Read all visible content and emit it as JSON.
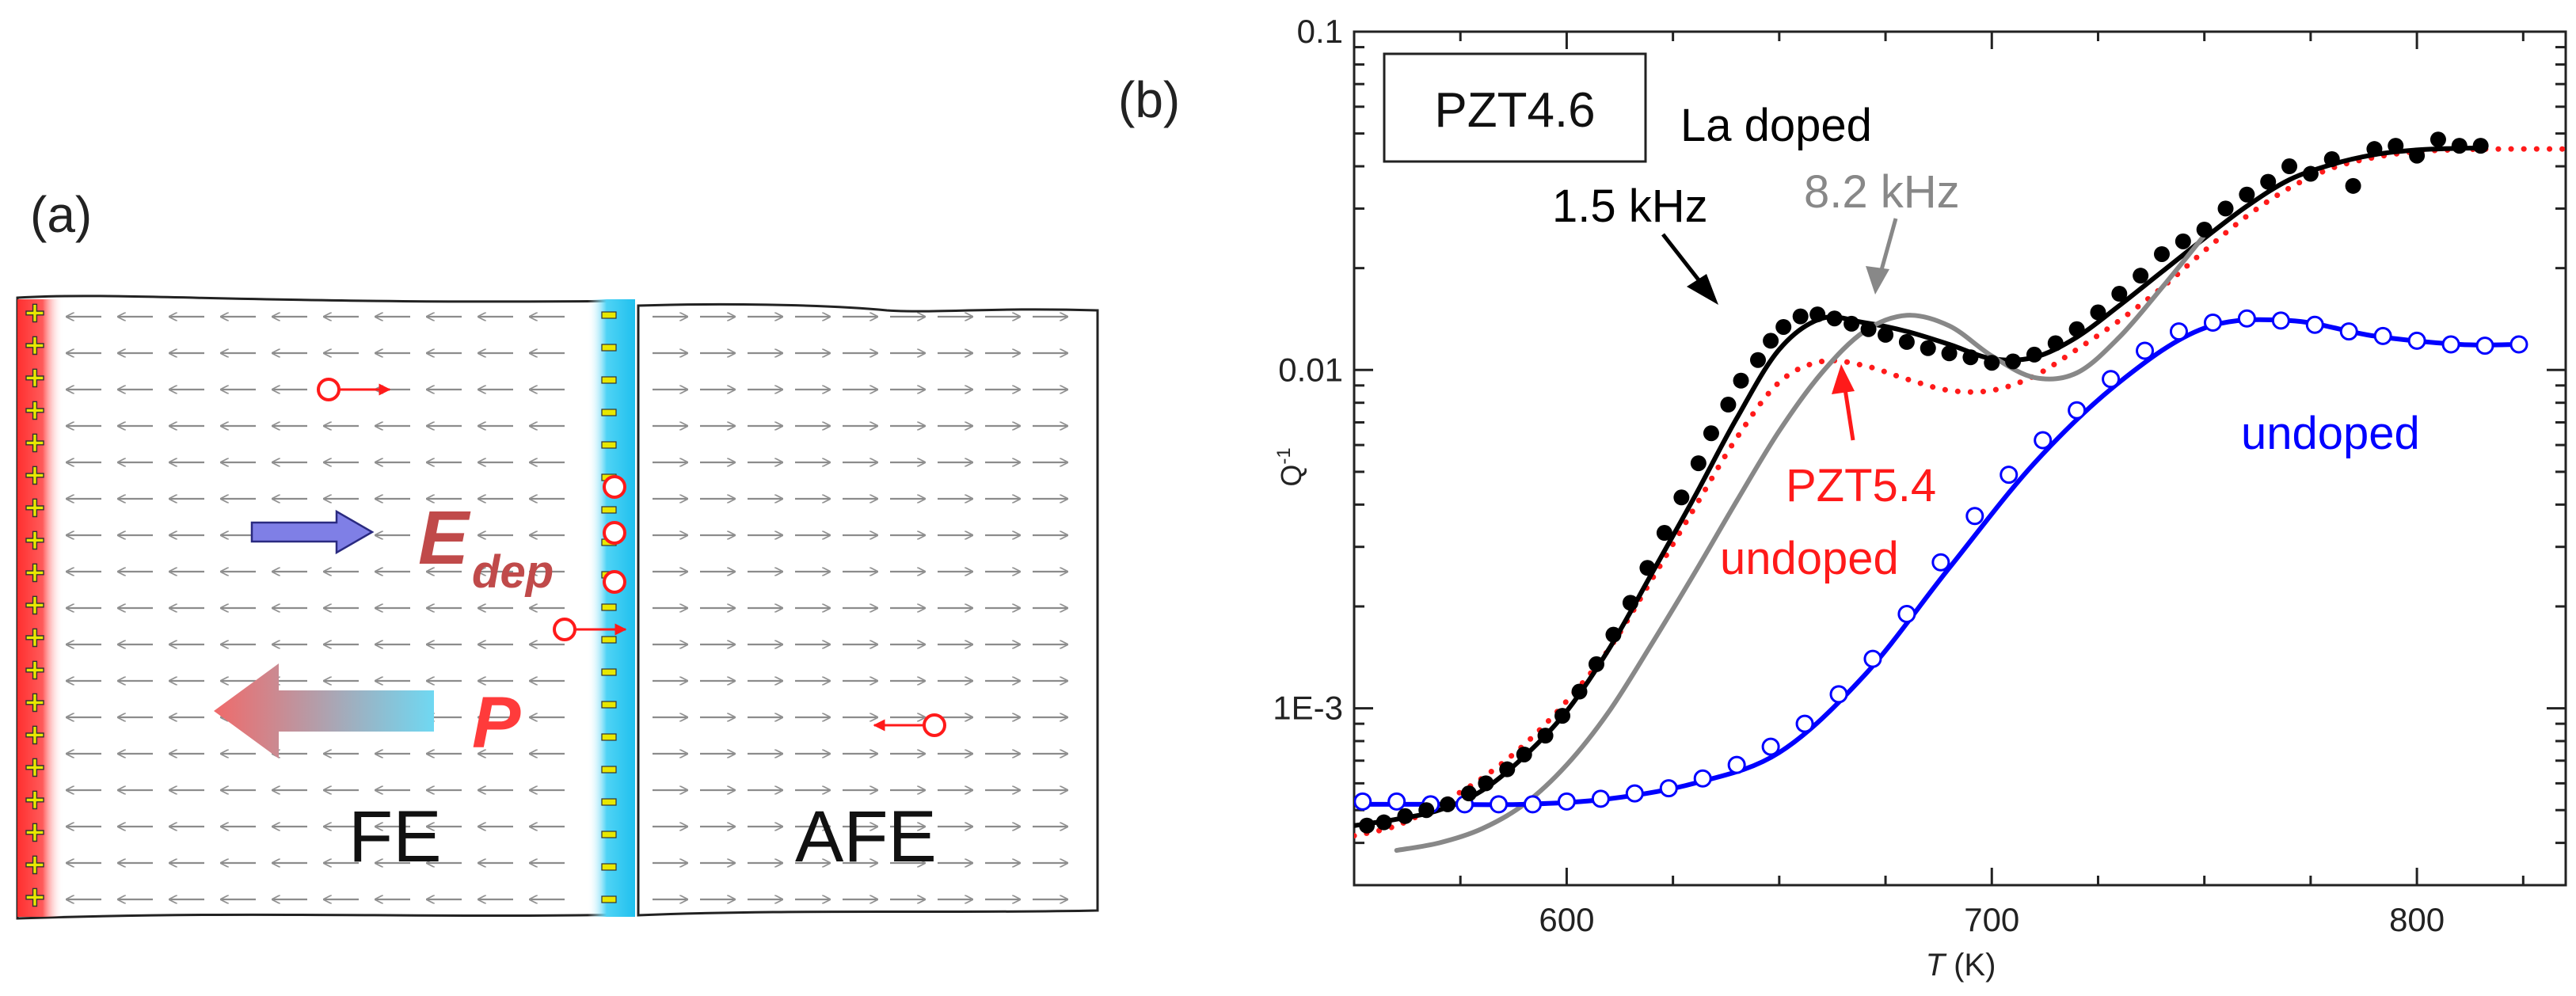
{
  "panel_a": {
    "label": "(a)",
    "field_label_main": "E",
    "field_label_sub": "dep",
    "polarization_label": "P",
    "fe_label": "FE",
    "afe_label": "AFE",
    "plus_symbol": "+",
    "colors": {
      "positive_electrode": "#ff3b3b",
      "negative_electrode": "#27c6ef",
      "charge_sign": "#e8e800",
      "arrow_grid": "#8c8c8c",
      "defect": "#ff1a1a",
      "field_arrow": "#7f7fe6",
      "label": "#c04a4a"
    }
  },
  "chart_data": {
    "type": "line",
    "panel_label": "(b)",
    "title_box": "PZT4.6",
    "xlabel_italic": "T",
    "xlabel_unit": " (K)",
    "ylabel_main": "Q",
    "ylabel_sup": "-1",
    "xlim": [
      550,
      835
    ],
    "ylim": [
      0.0003,
      0.1
    ],
    "yscale": "log",
    "xticks": [
      600,
      700,
      800
    ],
    "yticks": [
      {
        "value": 0.1,
        "label": "0.1"
      },
      {
        "value": 0.01,
        "label": "0.01"
      },
      {
        "value": 0.001,
        "label": "1E-3"
      }
    ],
    "annotations": [
      {
        "text": "La doped",
        "color": "#000000"
      },
      {
        "text": "1.5 kHz",
        "color": "#000000"
      },
      {
        "text": "8.2 kHz",
        "color": "#888888"
      },
      {
        "text": "PZT5.4",
        "color": "#ff0000"
      },
      {
        "text": "undoped",
        "color": "#ff0000"
      },
      {
        "text": "undoped",
        "color": "#0000ff"
      }
    ],
    "series": [
      {
        "name": "La doped 1.5 kHz data",
        "style": "filled-markers",
        "color": "#000000",
        "x": [
          553,
          557,
          562,
          567,
          572,
          577,
          581,
          586,
          590,
          595,
          599,
          603,
          607,
          611,
          615,
          619,
          623,
          627,
          631,
          634,
          638,
          641,
          645,
          648,
          651,
          655,
          659,
          663,
          667,
          671,
          675,
          680,
          685,
          690,
          695,
          700,
          705,
          710,
          715,
          720,
          725,
          730,
          735,
          740,
          745,
          750,
          755,
          760,
          765,
          770,
          775,
          780,
          785,
          790,
          795,
          800,
          805,
          810,
          815
        ],
        "y": [
          0.00045,
          0.00046,
          0.00048,
          0.0005,
          0.00052,
          0.00056,
          0.0006,
          0.00066,
          0.00073,
          0.00083,
          0.00095,
          0.00112,
          0.00135,
          0.00165,
          0.00205,
          0.0026,
          0.0033,
          0.0042,
          0.0053,
          0.0065,
          0.0079,
          0.0093,
          0.0107,
          0.0122,
          0.0134,
          0.0144,
          0.0146,
          0.0142,
          0.0137,
          0.0132,
          0.0127,
          0.0121,
          0.0116,
          0.0112,
          0.0109,
          0.0105,
          0.0106,
          0.0111,
          0.012,
          0.0132,
          0.0148,
          0.0168,
          0.019,
          0.022,
          0.024,
          0.026,
          0.03,
          0.033,
          0.036,
          0.04,
          0.038,
          0.042,
          0.035,
          0.045,
          0.046,
          0.043,
          0.048,
          0.046,
          0.046
        ]
      },
      {
        "name": "La doped 1.5 kHz fit",
        "style": "line",
        "color": "#000000",
        "x": [
          550,
          560,
          570,
          580,
          590,
          600,
          610,
          620,
          630,
          640,
          650,
          660,
          670,
          680,
          690,
          700,
          710,
          720,
          730,
          740,
          750,
          760,
          770,
          780,
          790,
          800,
          810,
          815
        ],
        "y": [
          0.00045,
          0.00047,
          0.0005,
          0.00057,
          0.00072,
          0.00098,
          0.0015,
          0.0025,
          0.0042,
          0.0072,
          0.0115,
          0.0142,
          0.0138,
          0.013,
          0.0119,
          0.0108,
          0.0109,
          0.0125,
          0.0155,
          0.0195,
          0.0245,
          0.0305,
          0.0365,
          0.0405,
          0.0433,
          0.0447,
          0.0452,
          0.0453
        ]
      },
      {
        "name": "8.2 kHz",
        "style": "line",
        "color": "#888888",
        "x": [
          560,
          570,
          580,
          590,
          600,
          610,
          620,
          630,
          640,
          650,
          660,
          670,
          680,
          690,
          700,
          710,
          720,
          730,
          740,
          750
        ],
        "y": [
          0.00038,
          0.0004,
          0.00044,
          0.00052,
          0.00068,
          0.00098,
          0.00155,
          0.0025,
          0.0041,
          0.0066,
          0.0098,
          0.013,
          0.0145,
          0.0135,
          0.011,
          0.0095,
          0.0098,
          0.0125,
          0.0175,
          0.025
        ]
      },
      {
        "name": "PZT5.4 undoped",
        "style": "dotted-line",
        "color": "#ff1a1a",
        "x": [
          550,
          560,
          570,
          580,
          590,
          600,
          610,
          620,
          630,
          640,
          650,
          660,
          670,
          680,
          690,
          700,
          710,
          720,
          730,
          740,
          750,
          760,
          770,
          780,
          790,
          800,
          810,
          820,
          835
        ],
        "y": [
          0.00042,
          0.00045,
          0.00052,
          0.00062,
          0.00078,
          0.00105,
          0.0015,
          0.0024,
          0.0039,
          0.0063,
          0.0092,
          0.0106,
          0.0103,
          0.0094,
          0.0087,
          0.0087,
          0.0096,
          0.0115,
          0.014,
          0.0175,
          0.0225,
          0.0285,
          0.0345,
          0.0395,
          0.0425,
          0.0442,
          0.0448,
          0.045,
          0.045
        ]
      },
      {
        "name": "undoped data",
        "style": "open-markers",
        "color": "#0000ff",
        "x": [
          552,
          560,
          568,
          576,
          584,
          592,
          600,
          608,
          616,
          624,
          632,
          640,
          648,
          656,
          664,
          672,
          680,
          688,
          696,
          704,
          712,
          720,
          728,
          736,
          744,
          752,
          760,
          768,
          776,
          784,
          792,
          800,
          808,
          816,
          824
        ],
        "y": [
          0.00053,
          0.00053,
          0.00052,
          0.00052,
          0.00052,
          0.00052,
          0.00053,
          0.00054,
          0.00056,
          0.00058,
          0.00062,
          0.00068,
          0.00077,
          0.0009,
          0.0011,
          0.0014,
          0.0019,
          0.0027,
          0.0037,
          0.0049,
          0.0062,
          0.0076,
          0.0094,
          0.0114,
          0.013,
          0.0138,
          0.0142,
          0.014,
          0.0136,
          0.013,
          0.0126,
          0.0122,
          0.0119,
          0.0118,
          0.0119
        ]
      },
      {
        "name": "undoped fit",
        "style": "line",
        "color": "#0000ff",
        "x": [
          552,
          570,
          590,
          610,
          630,
          650,
          670,
          690,
          710,
          730,
          750,
          770,
          790,
          810,
          824
        ],
        "y": [
          0.00052,
          0.00052,
          0.00052,
          0.00054,
          0.0006,
          0.00074,
          0.00125,
          0.0026,
          0.0053,
          0.0092,
          0.0133,
          0.014,
          0.0126,
          0.0119,
          0.0119
        ]
      }
    ]
  }
}
